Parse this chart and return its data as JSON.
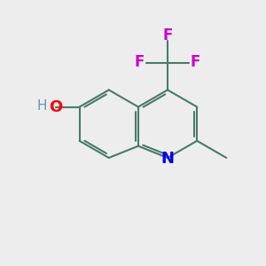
{
  "background_color": "#EDEDED",
  "bond_color": "#4a7a6a",
  "bond_width": 1.5,
  "atom_colors": {
    "N": "#0000EE",
    "O": "#FF0000",
    "F": "#CC00CC",
    "H": "#6699AA",
    "C": "#000000"
  },
  "font_size_atoms": 13,
  "font_size_small": 11
}
